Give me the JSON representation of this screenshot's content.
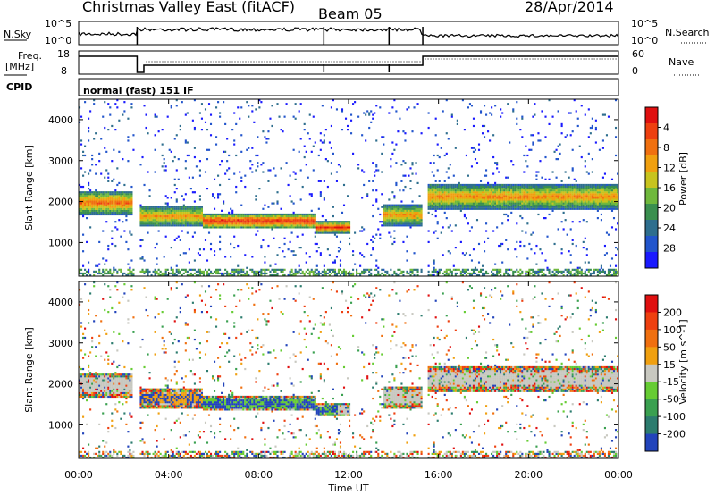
{
  "header": {
    "station": "Christmas Valley East (fitACF)",
    "beam": "Beam 05",
    "date": "28/Apr/2014"
  },
  "noise_panel": {
    "left_label": "N.Sky",
    "right_label": "N.Search",
    "left_ticks": [
      "10^5",
      "10^0"
    ],
    "right_ticks": [
      "10^5",
      "10^0"
    ]
  },
  "freq_panel": {
    "left_label_line1": "Freq.",
    "left_label_line2": "[MHz]",
    "right_label": "Nave",
    "left_ticks": [
      "18",
      "8"
    ],
    "right_ticks": [
      "60",
      "0"
    ]
  },
  "cpid": {
    "label": "CPID",
    "value": "normal (fast) 151 IF"
  },
  "time_axis": {
    "label": "Time UT",
    "ticks": [
      "00:00",
      "04:00",
      "08:00",
      "12:00",
      "16:00",
      "20:00",
      "00:00"
    ]
  },
  "chart_data": [
    {
      "type": "heatmap",
      "title": "",
      "quantity": "Power",
      "ylabel": "Slant Range [km]",
      "xlabel": "Time UT",
      "xlim_hours": [
        0,
        24
      ],
      "ylim": [
        180,
        4500
      ],
      "yticks": [
        "1000",
        "2000",
        "3000",
        "4000"
      ],
      "colorbar": {
        "label": "Power [dB]",
        "ticks": [
          "4",
          "8",
          "12",
          "16",
          "20",
          "24",
          "28"
        ],
        "colors": [
          "#1a1aff",
          "#2255cc",
          "#2e6e8e",
          "#3a8f4f",
          "#6fb83c",
          "#c8c41e",
          "#f0a010",
          "#f07010",
          "#ee4010",
          "#e01010"
        ]
      },
      "features": [
        {
          "t_start": 0.0,
          "t_end": 2.4,
          "range_center": 1950,
          "half_width": 180,
          "level": 0.78
        },
        {
          "t_start": 2.7,
          "t_end": 5.5,
          "range_center": 1620,
          "half_width": 160,
          "level": 0.7
        },
        {
          "t_start": 5.5,
          "t_end": 10.5,
          "range_center": 1500,
          "half_width": 110,
          "level": 0.95
        },
        {
          "t_start": 10.5,
          "t_end": 12.0,
          "range_center": 1350,
          "half_width": 90,
          "level": 0.9
        },
        {
          "t_start": 13.5,
          "t_end": 15.2,
          "range_center": 1650,
          "half_width": 160,
          "level": 0.7
        },
        {
          "t_start": 15.5,
          "t_end": 24.0,
          "range_center": 2100,
          "half_width": 190,
          "level": 0.72
        }
      ]
    },
    {
      "type": "heatmap",
      "title": "",
      "quantity": "Velocity",
      "ylabel": "Slant Range [km]",
      "xlabel": "Time UT",
      "xlim_hours": [
        0,
        24
      ],
      "ylim": [
        180,
        4500
      ],
      "yticks": [
        "1000",
        "2000",
        "3000",
        "4000"
      ],
      "colorbar": {
        "label": "Velocity [m s^-1]",
        "ticks": [
          "200",
          "100",
          "50",
          "15",
          "-15",
          "-50",
          "-100",
          "-200"
        ],
        "colors": [
          "#2244bb",
          "#2c7c6e",
          "#3aa050",
          "#66cc33",
          "#c8c8c0",
          "#f0a010",
          "#f07010",
          "#ee4010",
          "#e01010"
        ]
      }
    }
  ]
}
